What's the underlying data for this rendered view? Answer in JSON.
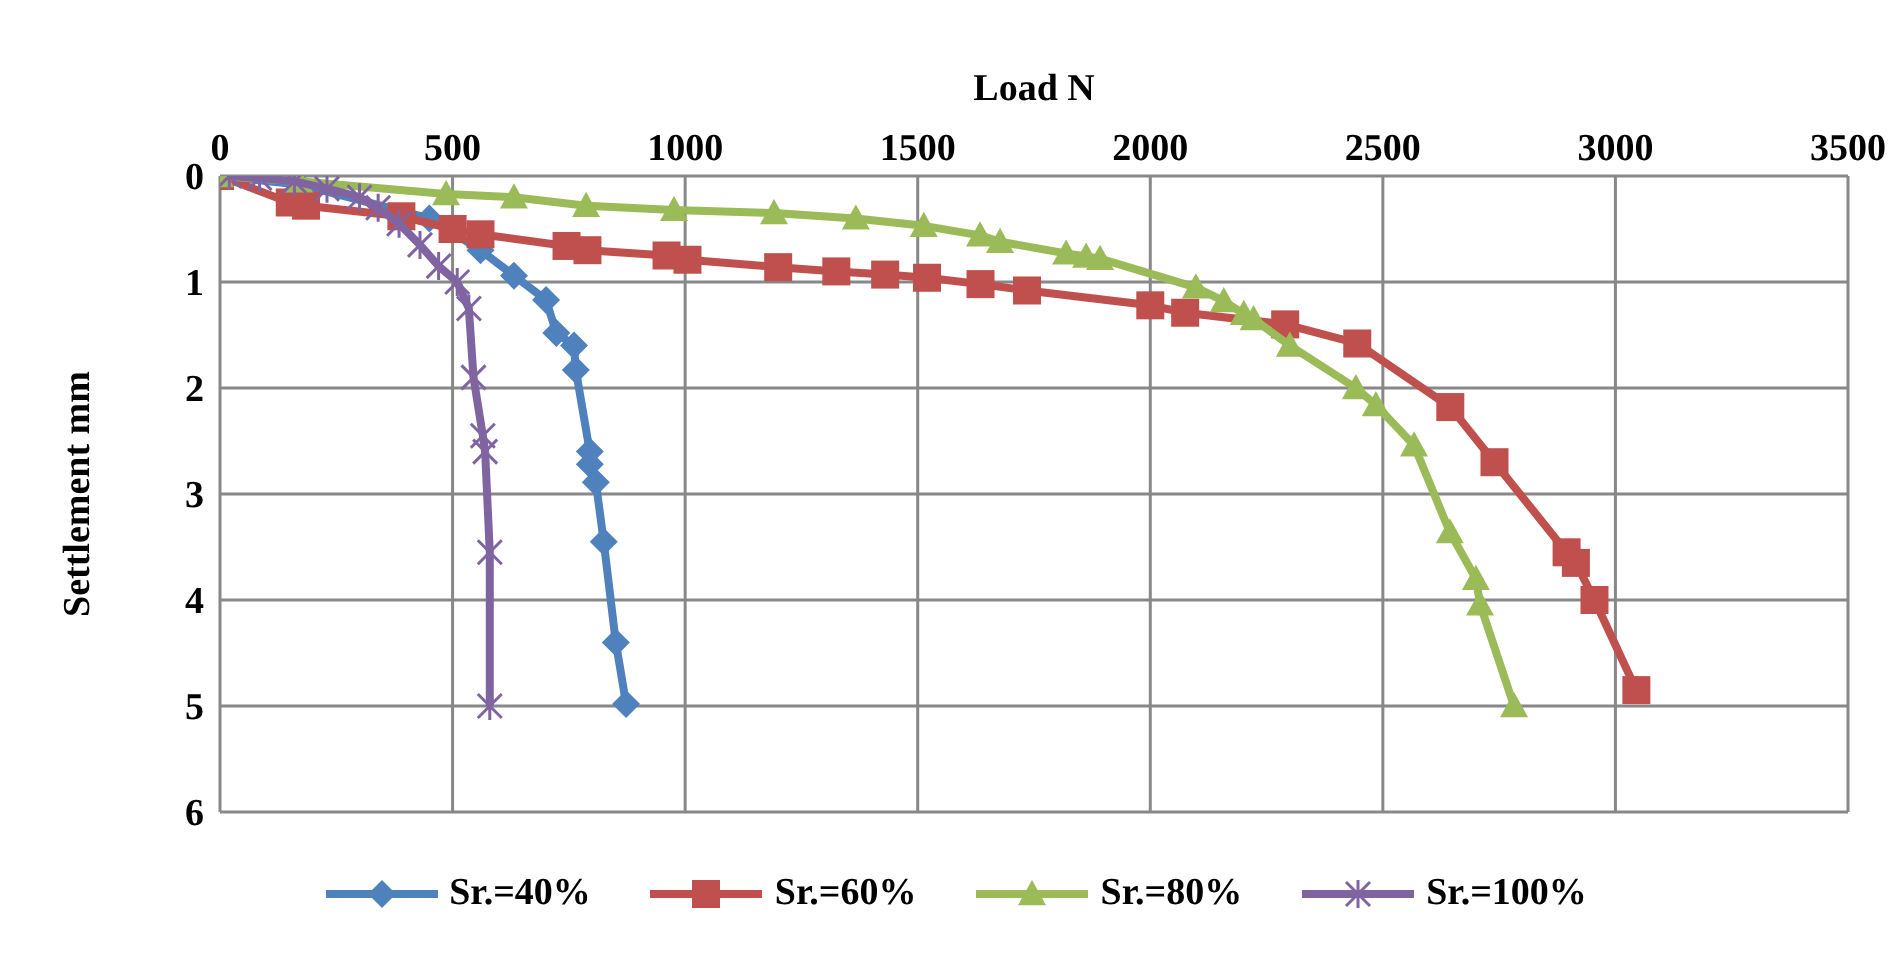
{
  "chart_data": {
    "type": "line",
    "xlabel": "Load N",
    "ylabel": "Settlement mm",
    "xlim": [
      0,
      3500
    ],
    "xticks": [
      0,
      500,
      1000,
      1500,
      2000,
      2500,
      3000,
      3500
    ],
    "ylim": [
      6,
      0
    ],
    "yticks": [
      0,
      1,
      2,
      3,
      4,
      5,
      6
    ],
    "grid": true,
    "legend": "bottom",
    "line_style": "solid",
    "series": [
      {
        "name": "Sr.=40%",
        "color": "#4f81bd",
        "marker": "diamond",
        "x": [
          0,
          170,
          450,
          560,
          632,
          701,
          723,
          761,
          765,
          795,
          795,
          808,
          825,
          851,
          873
        ],
        "values": [
          0,
          0.08,
          0.4,
          0.7,
          0.94,
          1.17,
          1.48,
          1.6,
          1.83,
          2.6,
          2.72,
          2.89,
          3.45,
          4.4,
          4.98
        ]
      },
      {
        "name": "Sr.=60%",
        "color": "#c0504d",
        "marker": "square",
        "x": [
          0,
          150,
          185,
          390,
          500,
          560,
          745,
          790,
          960,
          1005,
          1200,
          1325,
          1430,
          1520,
          1635,
          1735,
          2000,
          2075,
          2290,
          2445,
          2645,
          2740,
          2895,
          2915,
          2955,
          3045
        ],
        "values": [
          0,
          0.25,
          0.28,
          0.38,
          0.5,
          0.55,
          0.66,
          0.7,
          0.75,
          0.79,
          0.86,
          0.9,
          0.93,
          0.96,
          1.02,
          1.08,
          1.22,
          1.29,
          1.4,
          1.58,
          2.18,
          2.7,
          3.55,
          3.65,
          4.0,
          4.85
        ]
      },
      {
        "name": "Sr.=80%",
        "color": "#9bbb59",
        "marker": "triangle",
        "x": [
          0,
          170,
          486,
          632,
          787,
          976,
          1191,
          1367,
          1513,
          1634,
          1677,
          1819,
          1862,
          1892,
          2098,
          2158,
          2201,
          2222,
          2300,
          2442,
          2485,
          2567,
          2644,
          2700,
          2709,
          2782
        ],
        "values": [
          0,
          0.05,
          0.17,
          0.2,
          0.28,
          0.32,
          0.35,
          0.4,
          0.47,
          0.56,
          0.62,
          0.73,
          0.76,
          0.78,
          1.05,
          1.18,
          1.3,
          1.35,
          1.6,
          2.0,
          2.16,
          2.54,
          3.36,
          3.8,
          4.04,
          5.0
        ]
      },
      {
        "name": "Sr.=100%",
        "color": "#8064a2",
        "marker": "cross",
        "x": [
          20,
          85,
          160,
          230,
          300,
          340,
          385,
          430,
          470,
          510,
          535,
          545,
          565,
          570,
          580,
          580
        ],
        "values": [
          0,
          0.02,
          0.05,
          0.12,
          0.2,
          0.3,
          0.45,
          0.65,
          0.85,
          1.0,
          1.25,
          1.9,
          2.45,
          2.6,
          3.55,
          5.0
        ]
      }
    ]
  }
}
